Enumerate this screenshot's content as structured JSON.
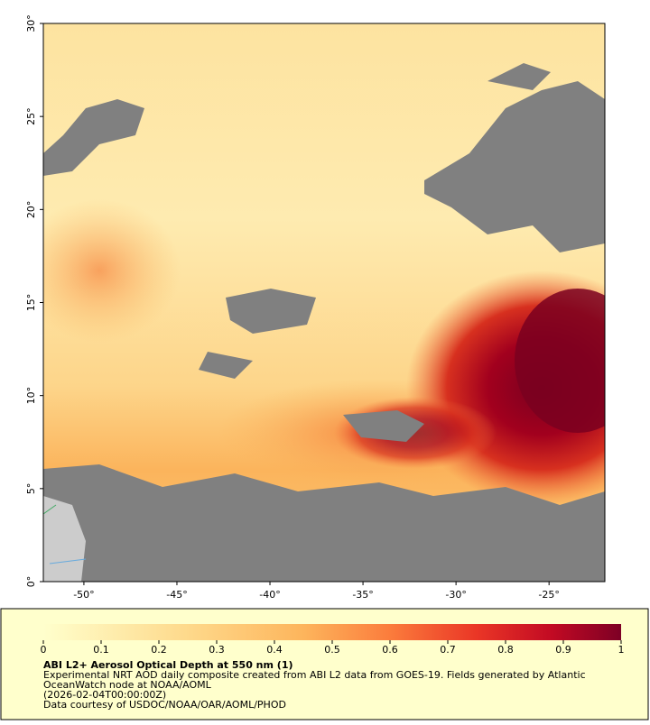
{
  "chart_data": {
    "type": "map",
    "title": "ABI L2+ Aerosol Optical Depth at 550 nm (1)",
    "caption_lines": [
      "Experimental NRT AOD daily composite created from ABI L2 data from GOES-19. Fields generated by Atlantic",
      "OceanWatch node at NOAA/AOML",
      "(2026-02-04T00:00:00Z)",
      "Data courtesy of USDOC/NOAA/OAR/AOML/PHOD"
    ],
    "xlim": [
      -52.18,
      -22
    ],
    "xticks": [
      {
        "value": -50,
        "label": "-50°"
      },
      {
        "value": -45,
        "label": "-45°"
      },
      {
        "value": -40,
        "label": "-40°"
      },
      {
        "value": -35,
        "label": "-35°"
      },
      {
        "value": -30,
        "label": "-30°"
      },
      {
        "value": -25,
        "label": "-25°"
      }
    ],
    "ylim": [
      0,
      30
    ],
    "yticks": [
      {
        "value": 0,
        "label": "0°"
      },
      {
        "value": 5,
        "label": "5°"
      },
      {
        "value": 10,
        "label": "10°"
      },
      {
        "value": 15,
        "label": "15°"
      },
      {
        "value": 20,
        "label": "20°"
      },
      {
        "value": 25,
        "label": "25°"
      },
      {
        "value": 30,
        "label": "30°"
      }
    ],
    "colorbar": {
      "lim": [
        0,
        1
      ],
      "ticks": [
        0,
        0.1,
        0.2,
        0.3,
        0.4,
        0.5,
        0.6,
        0.7,
        0.8,
        0.9,
        1
      ]
    }
  }
}
